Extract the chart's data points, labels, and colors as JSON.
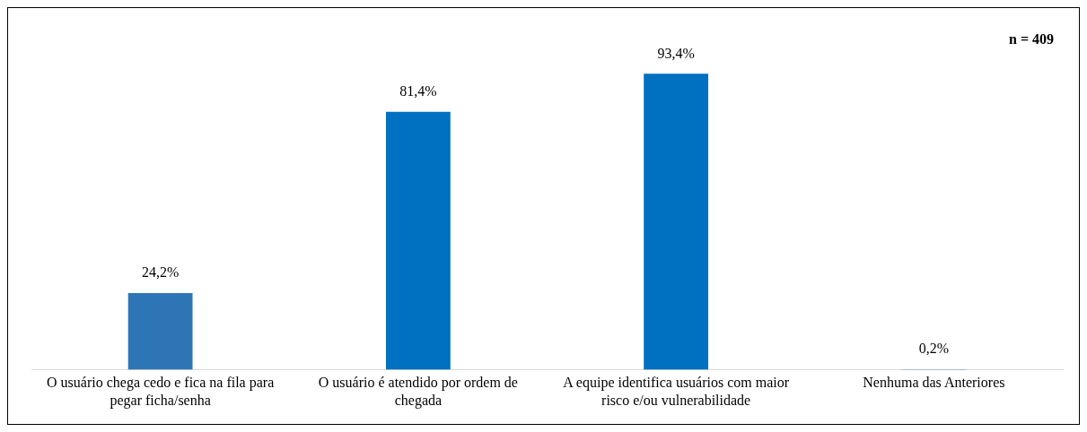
{
  "chart_data": {
    "type": "bar",
    "categories": [
      "O usuário chega cedo e fica na fila para pegar ficha/senha",
      "O usuário é atendido por ordem de chegada",
      "A equipe identifica usuários com maior risco e/ou vulnerabilidade",
      "Nenhuma das Anteriores"
    ],
    "values": [
      24.2,
      81.4,
      93.4,
      0.2
    ],
    "colors": [
      "#2e75b6",
      "#0070c0",
      "#0070c0",
      "#0070c0"
    ],
    "value_labels": [
      "24,2%",
      "81,4%",
      "93,4%",
      "0,2%"
    ],
    "annotations": [
      "n = 409"
    ],
    "grid": false,
    "legend": false,
    "tick_labels": "x"
  }
}
